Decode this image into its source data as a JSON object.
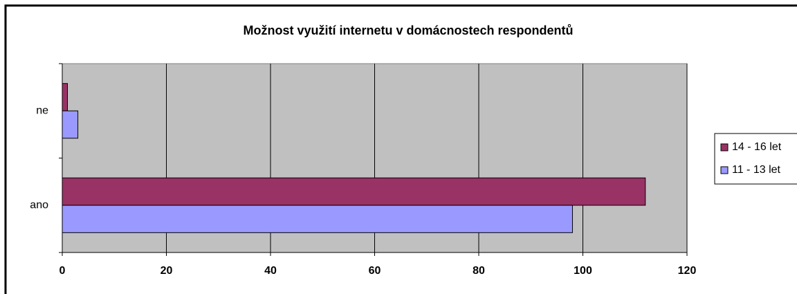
{
  "chart_data": {
    "type": "hbar",
    "title": "Možnost využití internetu v domácnostech respondentů",
    "categories": [
      "ano",
      "ne"
    ],
    "series": [
      {
        "name": "14 - 16 let",
        "color": "#993366",
        "values": [
          112,
          1
        ]
      },
      {
        "name": "11 - 13 let",
        "color": "#9999ff",
        "values": [
          98,
          3
        ]
      }
    ],
    "xlim": [
      0,
      120
    ],
    "xticks": [
      0,
      20,
      40,
      60,
      80,
      100,
      120
    ],
    "grid": true,
    "legend": "right"
  }
}
